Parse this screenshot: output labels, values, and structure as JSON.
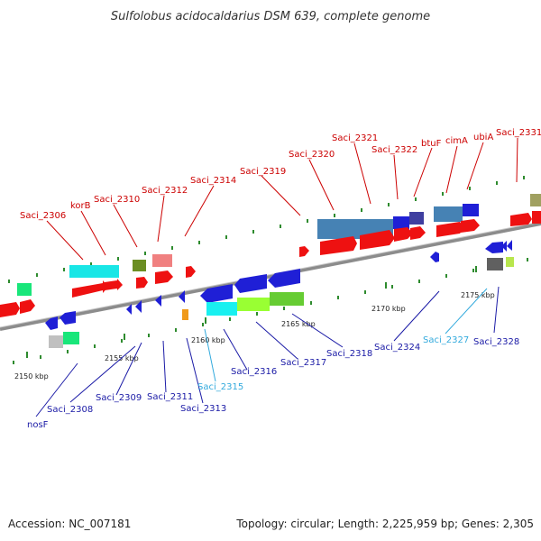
{
  "title": "Sulfolobus acidocaldarius DSM 639, complete genome",
  "footer": {
    "accession": "Accession: NC_007181",
    "topology": "Topology: circular; Length: 2,225,959 bp; Genes: 2,305"
  },
  "colors": {
    "upper_label": "#cc0000",
    "lower_label": "#1a1aa6",
    "pseudo_label": "#33aadd",
    "backbone": "#8c8c8c"
  },
  "scale": {
    "ticks": [
      "2150 kbp",
      "2155 kbp",
      "2160 kbp",
      "2165 kbp",
      "2170 kbp",
      "2175 kbp"
    ]
  },
  "upper_labels": [
    "Saci_2306",
    "korB",
    "Saci_2310",
    "Saci_2312",
    "Saci_2314",
    "Saci_2319",
    "Saci_2320",
    "Saci_2321",
    "Saci_2322",
    "btuF",
    "cimA",
    "ubiA",
    "Saci_2331"
  ],
  "lower_labels": [
    "nosF",
    "Saci_2308",
    "Saci_2309",
    "Saci_2311",
    "Saci_2313",
    "Saci_2315",
    "Saci_2316",
    "Saci_2317",
    "Saci_2318",
    "Saci_2324",
    "Saci_2327",
    "Saci_2328"
  ]
}
